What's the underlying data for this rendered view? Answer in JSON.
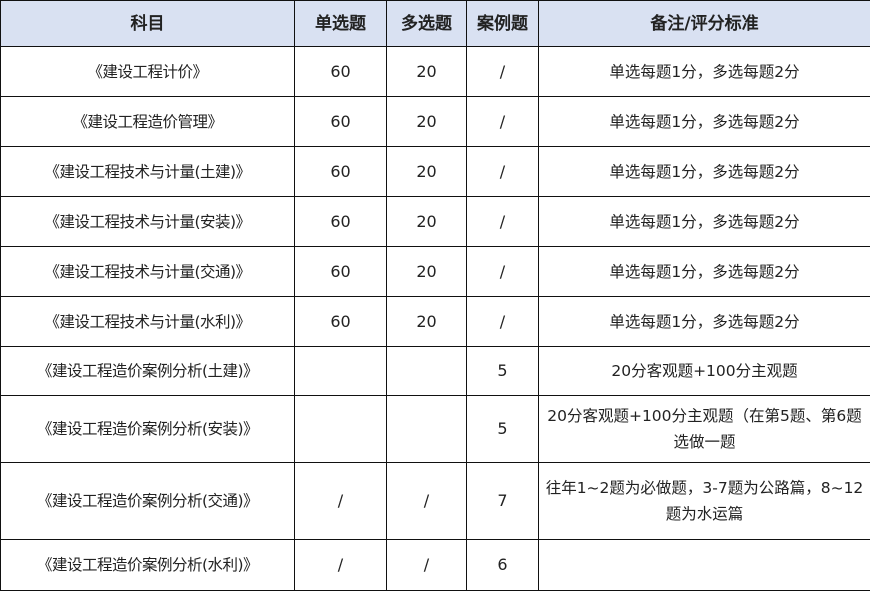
{
  "header": {
    "subject": "科目",
    "single": "单选题",
    "multi": "多选题",
    "case": "案例题",
    "note": "备注/评分标准"
  },
  "rows": [
    {
      "subject": "《建设工程计价》",
      "single": "60",
      "multi": "20",
      "case": "/",
      "note": "单选每题1分，多选每题2分"
    },
    {
      "subject": "《建设工程造价管理》",
      "single": "60",
      "multi": "20",
      "case": "/",
      "note": "单选每题1分，多选每题2分"
    },
    {
      "subject": "《建设工程技术与计量(土建)》",
      "single": "60",
      "multi": "20",
      "case": "/",
      "note": "单选每题1分，多选每题2分"
    },
    {
      "subject": "《建设工程技术与计量(安装)》",
      "single": "60",
      "multi": "20",
      "case": "/",
      "note": "单选每题1分，多选每题2分"
    },
    {
      "subject": "《建设工程技术与计量(交通)》",
      "single": "60",
      "multi": "20",
      "case": "/",
      "note": "单选每题1分，多选每题2分"
    },
    {
      "subject": "《建设工程技术与计量(水利)》",
      "single": "60",
      "multi": "20",
      "case": "/",
      "note": "单选每题1分，多选每题2分"
    },
    {
      "subject": "《建设工程造价案例分析(土建)》",
      "single": "",
      "multi": "",
      "case": "5",
      "note": "20分客观题+100分主观题"
    },
    {
      "subject": "《建设工程造价案例分析(安装)》",
      "single": "",
      "multi": "",
      "case": "5",
      "note": "20分客观题+100分主观题（在第5题、第6题选做一题"
    },
    {
      "subject": "《建设工程造价案例分析(交通)》",
      "single": "/",
      "multi": "/",
      "case": "7",
      "note": "往年1~2题为必做题，3-7题为公路篇，8~12题为水运篇"
    },
    {
      "subject": "《建设工程造价案例分析(水利)》",
      "single": "/",
      "multi": "/",
      "case": "6",
      "note": ""
    }
  ]
}
